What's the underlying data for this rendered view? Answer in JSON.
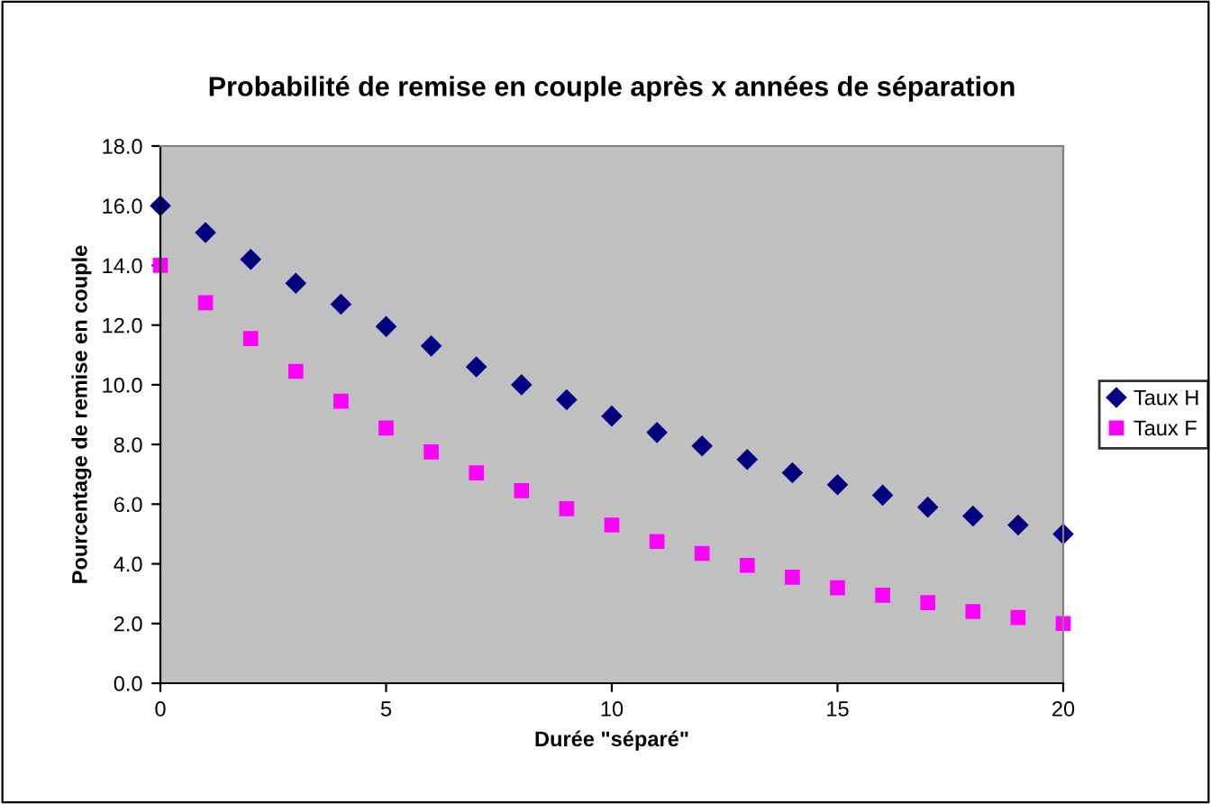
{
  "chart_data": {
    "type": "scatter",
    "title": "Probabilité de remise en couple après x années de séparation",
    "xlabel": "Durée \"séparé\"",
    "ylabel": "Pourcentage de remise en couple",
    "x": [
      0,
      1,
      2,
      3,
      4,
      5,
      6,
      7,
      8,
      9,
      10,
      11,
      12,
      13,
      14,
      15,
      16,
      17,
      18,
      19,
      20
    ],
    "series": [
      {
        "name": "Taux H",
        "color": "#000080",
        "marker": "diamond",
        "values": [
          16.0,
          15.1,
          14.2,
          13.4,
          12.7,
          11.95,
          11.3,
          10.6,
          10.0,
          9.5,
          8.95,
          8.4,
          7.95,
          7.5,
          7.05,
          6.65,
          6.3,
          5.9,
          5.6,
          5.3,
          5.0
        ]
      },
      {
        "name": "Taux F",
        "color": "#ff00ff",
        "marker": "square",
        "values": [
          14.0,
          12.75,
          11.55,
          10.45,
          9.45,
          8.55,
          7.75,
          7.05,
          6.45,
          5.85,
          5.3,
          4.75,
          4.35,
          3.95,
          3.55,
          3.2,
          2.95,
          2.7,
          2.4,
          2.2,
          2.0
        ]
      }
    ],
    "xlim": [
      0,
      20
    ],
    "xticks": [
      0,
      5,
      10,
      15,
      20
    ],
    "ylim": [
      0,
      18
    ],
    "yticks": [
      {
        "value": 0,
        "label": "0.0"
      },
      {
        "value": 2,
        "label": "2.0"
      },
      {
        "value": 4,
        "label": "4.0"
      },
      {
        "value": 6,
        "label": "6.0"
      },
      {
        "value": 8,
        "label": "8.0"
      },
      {
        "value": 10,
        "label": "10.0"
      },
      {
        "value": 12,
        "label": "12.0"
      },
      {
        "value": 14,
        "label": "14.0"
      },
      {
        "value": 16,
        "label": "16.0"
      },
      {
        "value": 18,
        "label": "18.0"
      }
    ],
    "grid": false,
    "legend": "right"
  }
}
